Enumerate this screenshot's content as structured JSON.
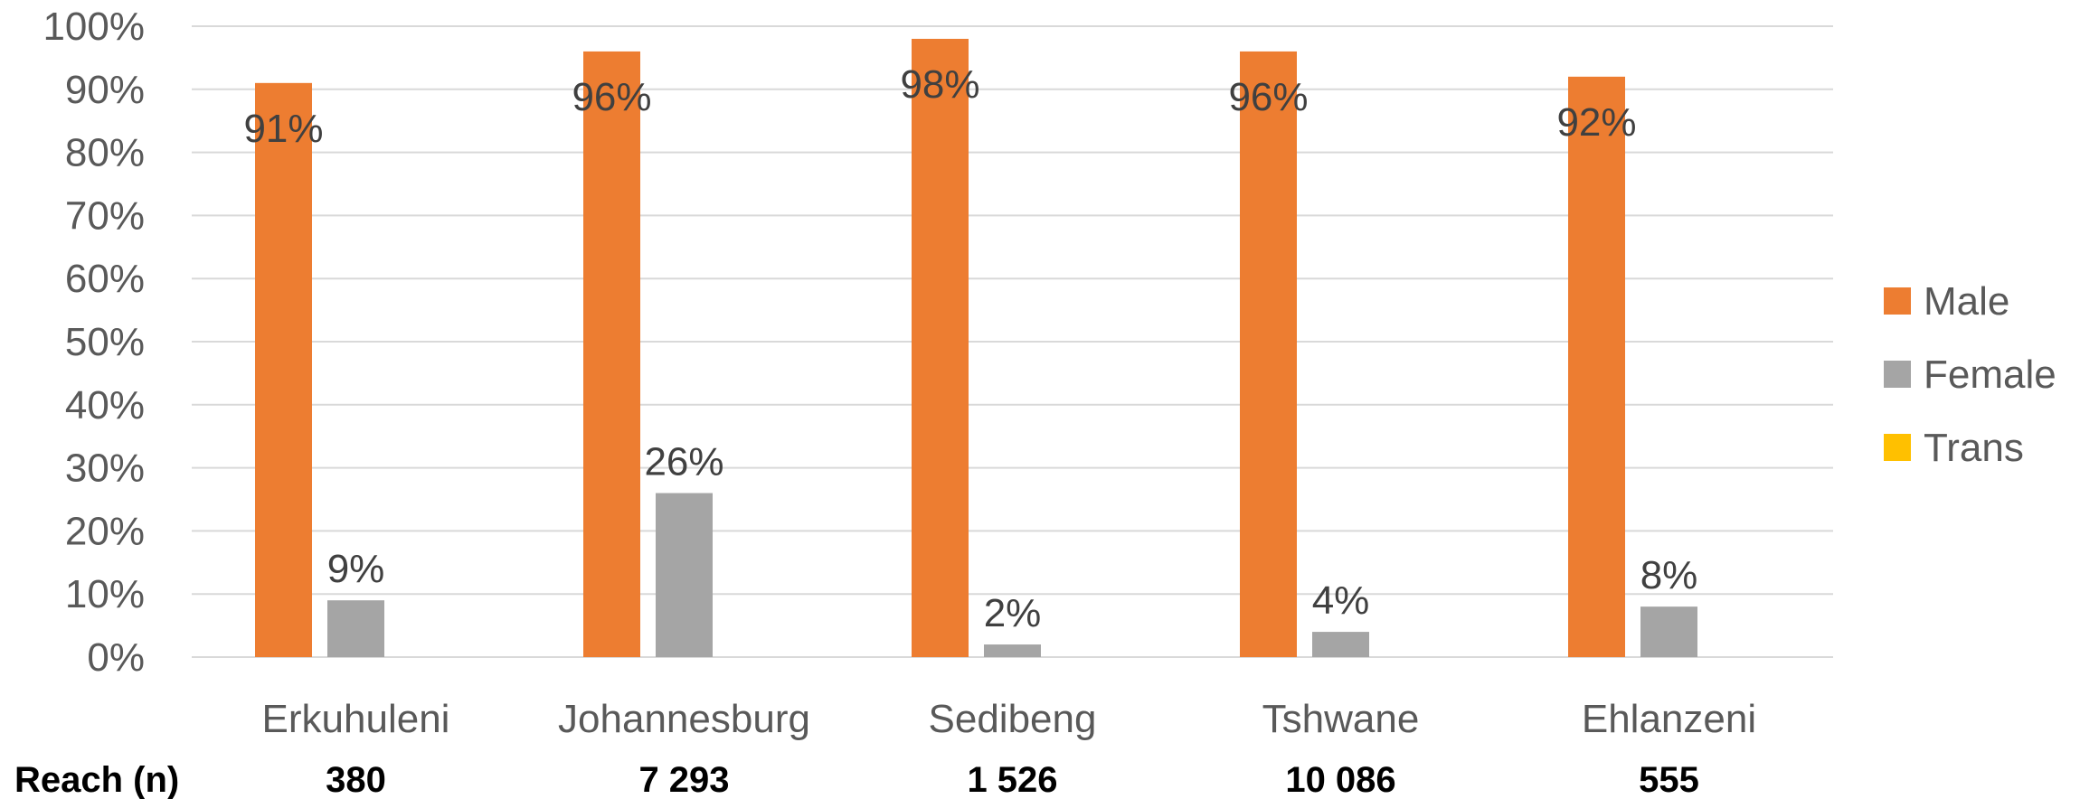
{
  "chart_data": {
    "type": "bar",
    "categories": [
      "Erkuhuleni",
      "Johannesburg",
      "Sedibeng",
      "Tshwane",
      "Ehlanzeni"
    ],
    "series": [
      {
        "name": "Male",
        "color": "#ed7d31",
        "values": [
          91,
          96,
          98,
          96,
          92
        ],
        "labels": [
          "91%",
          "96%",
          "98%",
          "96%",
          "92%"
        ]
      },
      {
        "name": "Female",
        "color": "#a5a5a5",
        "values": [
          9,
          26,
          2,
          4,
          8
        ],
        "labels": [
          "9%",
          "26%",
          "2%",
          "4%",
          "8%"
        ]
      },
      {
        "name": "Trans",
        "color": "#ffc000",
        "values": [
          0,
          0,
          0,
          0,
          0
        ],
        "labels": [
          "",
          "",
          "",
          "",
          ""
        ]
      }
    ],
    "ylim": [
      0,
      100
    ],
    "yticks": [
      "0%",
      "10%",
      "20%",
      "30%",
      "40%",
      "50%",
      "60%",
      "70%",
      "80%",
      "90%",
      "100%"
    ],
    "grid": true,
    "legend_position": "right",
    "reach": {
      "label": "Reach (n)",
      "values": [
        "380",
        "7 293",
        "1 526",
        "10 086",
        "555"
      ]
    }
  }
}
